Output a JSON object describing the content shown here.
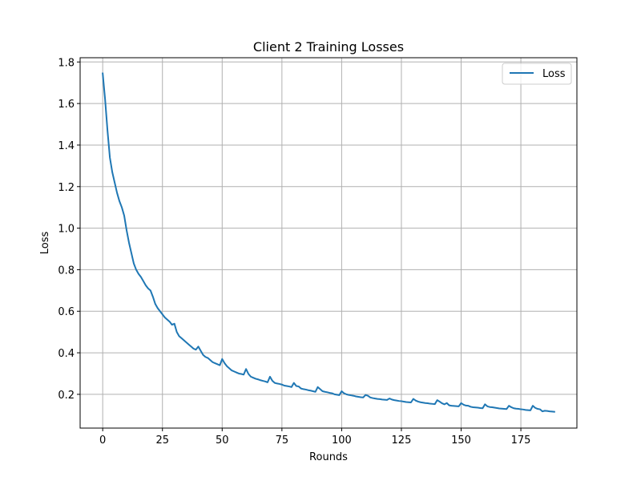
{
  "chart_data": {
    "type": "line",
    "title": "Client 2 Training Losses",
    "xlabel": "Rounds",
    "ylabel": "Loss",
    "xlim": [
      -9.45,
      198.45
    ],
    "ylim": [
      0.0375,
      1.8205
    ],
    "xticks": [
      0,
      25,
      50,
      75,
      100,
      125,
      150,
      175
    ],
    "yticks": [
      0.2,
      0.4,
      0.6,
      0.8,
      1.0,
      1.2,
      1.4,
      1.6,
      1.8
    ],
    "ytick_labels": [
      "0.2",
      "0.4",
      "0.6",
      "0.8",
      "1.0",
      "1.2",
      "1.4",
      "1.6",
      "1.8"
    ],
    "grid": true,
    "legend_position": "top-right",
    "series": [
      {
        "name": "Loss",
        "color": "#1f77b4",
        "x": [
          0,
          1,
          2,
          3,
          4,
          5,
          6,
          7,
          8,
          9,
          10,
          11,
          12,
          13,
          14,
          15,
          16,
          17,
          18,
          19,
          20,
          21,
          22,
          23,
          24,
          25,
          26,
          27,
          28,
          29,
          30,
          31,
          32,
          33,
          34,
          35,
          36,
          37,
          38,
          39,
          40,
          41,
          42,
          43,
          44,
          45,
          46,
          47,
          48,
          49,
          50,
          51,
          52,
          53,
          54,
          55,
          56,
          57,
          58,
          59,
          60,
          61,
          62,
          63,
          64,
          65,
          66,
          67,
          68,
          69,
          70,
          71,
          72,
          73,
          74,
          75,
          76,
          77,
          78,
          79,
          80,
          81,
          82,
          83,
          84,
          85,
          86,
          87,
          88,
          89,
          90,
          91,
          92,
          93,
          94,
          95,
          96,
          97,
          98,
          99,
          100,
          101,
          102,
          103,
          104,
          105,
          106,
          107,
          108,
          109,
          110,
          111,
          112,
          113,
          114,
          115,
          116,
          117,
          118,
          119,
          120,
          121,
          122,
          123,
          124,
          125,
          126,
          127,
          128,
          129,
          130,
          131,
          132,
          133,
          134,
          135,
          136,
          137,
          138,
          139,
          140,
          141,
          142,
          143,
          144,
          145,
          146,
          147,
          148,
          149,
          150,
          151,
          152,
          153,
          154,
          155,
          156,
          157,
          158,
          159,
          160,
          161,
          162,
          163,
          164,
          165,
          166,
          167,
          168,
          169,
          170,
          171,
          172,
          173,
          174,
          175,
          176,
          177,
          178,
          179,
          180,
          181,
          182,
          183,
          184,
          185,
          186,
          187,
          188,
          189
        ],
        "values": [
          1.745,
          1.62,
          1.47,
          1.34,
          1.27,
          1.22,
          1.17,
          1.13,
          1.1,
          1.06,
          0.99,
          0.93,
          0.88,
          0.83,
          0.8,
          0.78,
          0.765,
          0.745,
          0.725,
          0.71,
          0.7,
          0.67,
          0.635,
          0.615,
          0.6,
          0.585,
          0.57,
          0.56,
          0.55,
          0.535,
          0.54,
          0.5,
          0.48,
          0.47,
          0.46,
          0.45,
          0.44,
          0.43,
          0.42,
          0.415,
          0.43,
          0.41,
          0.39,
          0.38,
          0.375,
          0.365,
          0.355,
          0.35,
          0.345,
          0.34,
          0.37,
          0.35,
          0.335,
          0.325,
          0.315,
          0.31,
          0.305,
          0.3,
          0.298,
          0.295,
          0.322,
          0.298,
          0.285,
          0.28,
          0.275,
          0.272,
          0.268,
          0.265,
          0.262,
          0.258,
          0.285,
          0.265,
          0.255,
          0.252,
          0.25,
          0.247,
          0.242,
          0.24,
          0.238,
          0.235,
          0.255,
          0.24,
          0.238,
          0.228,
          0.225,
          0.223,
          0.22,
          0.218,
          0.215,
          0.212,
          0.235,
          0.225,
          0.215,
          0.212,
          0.21,
          0.207,
          0.205,
          0.2,
          0.198,
          0.196,
          0.215,
          0.205,
          0.2,
          0.197,
          0.195,
          0.193,
          0.19,
          0.188,
          0.186,
          0.185,
          0.197,
          0.193,
          0.185,
          0.182,
          0.18,
          0.178,
          0.177,
          0.175,
          0.174,
          0.173,
          0.18,
          0.175,
          0.172,
          0.17,
          0.168,
          0.167,
          0.165,
          0.163,
          0.162,
          0.161,
          0.178,
          0.17,
          0.165,
          0.162,
          0.16,
          0.158,
          0.157,
          0.155,
          0.154,
          0.153,
          0.172,
          0.165,
          0.157,
          0.152,
          0.158,
          0.147,
          0.145,
          0.144,
          0.143,
          0.142,
          0.158,
          0.15,
          0.146,
          0.145,
          0.14,
          0.138,
          0.137,
          0.136,
          0.134,
          0.133,
          0.152,
          0.142,
          0.139,
          0.138,
          0.136,
          0.134,
          0.132,
          0.131,
          0.13,
          0.129,
          0.145,
          0.138,
          0.133,
          0.131,
          0.13,
          0.128,
          0.127,
          0.125,
          0.124,
          0.123,
          0.145,
          0.135,
          0.13,
          0.128,
          0.118,
          0.121,
          0.12,
          0.118,
          0.117,
          0.116
        ]
      }
    ]
  }
}
